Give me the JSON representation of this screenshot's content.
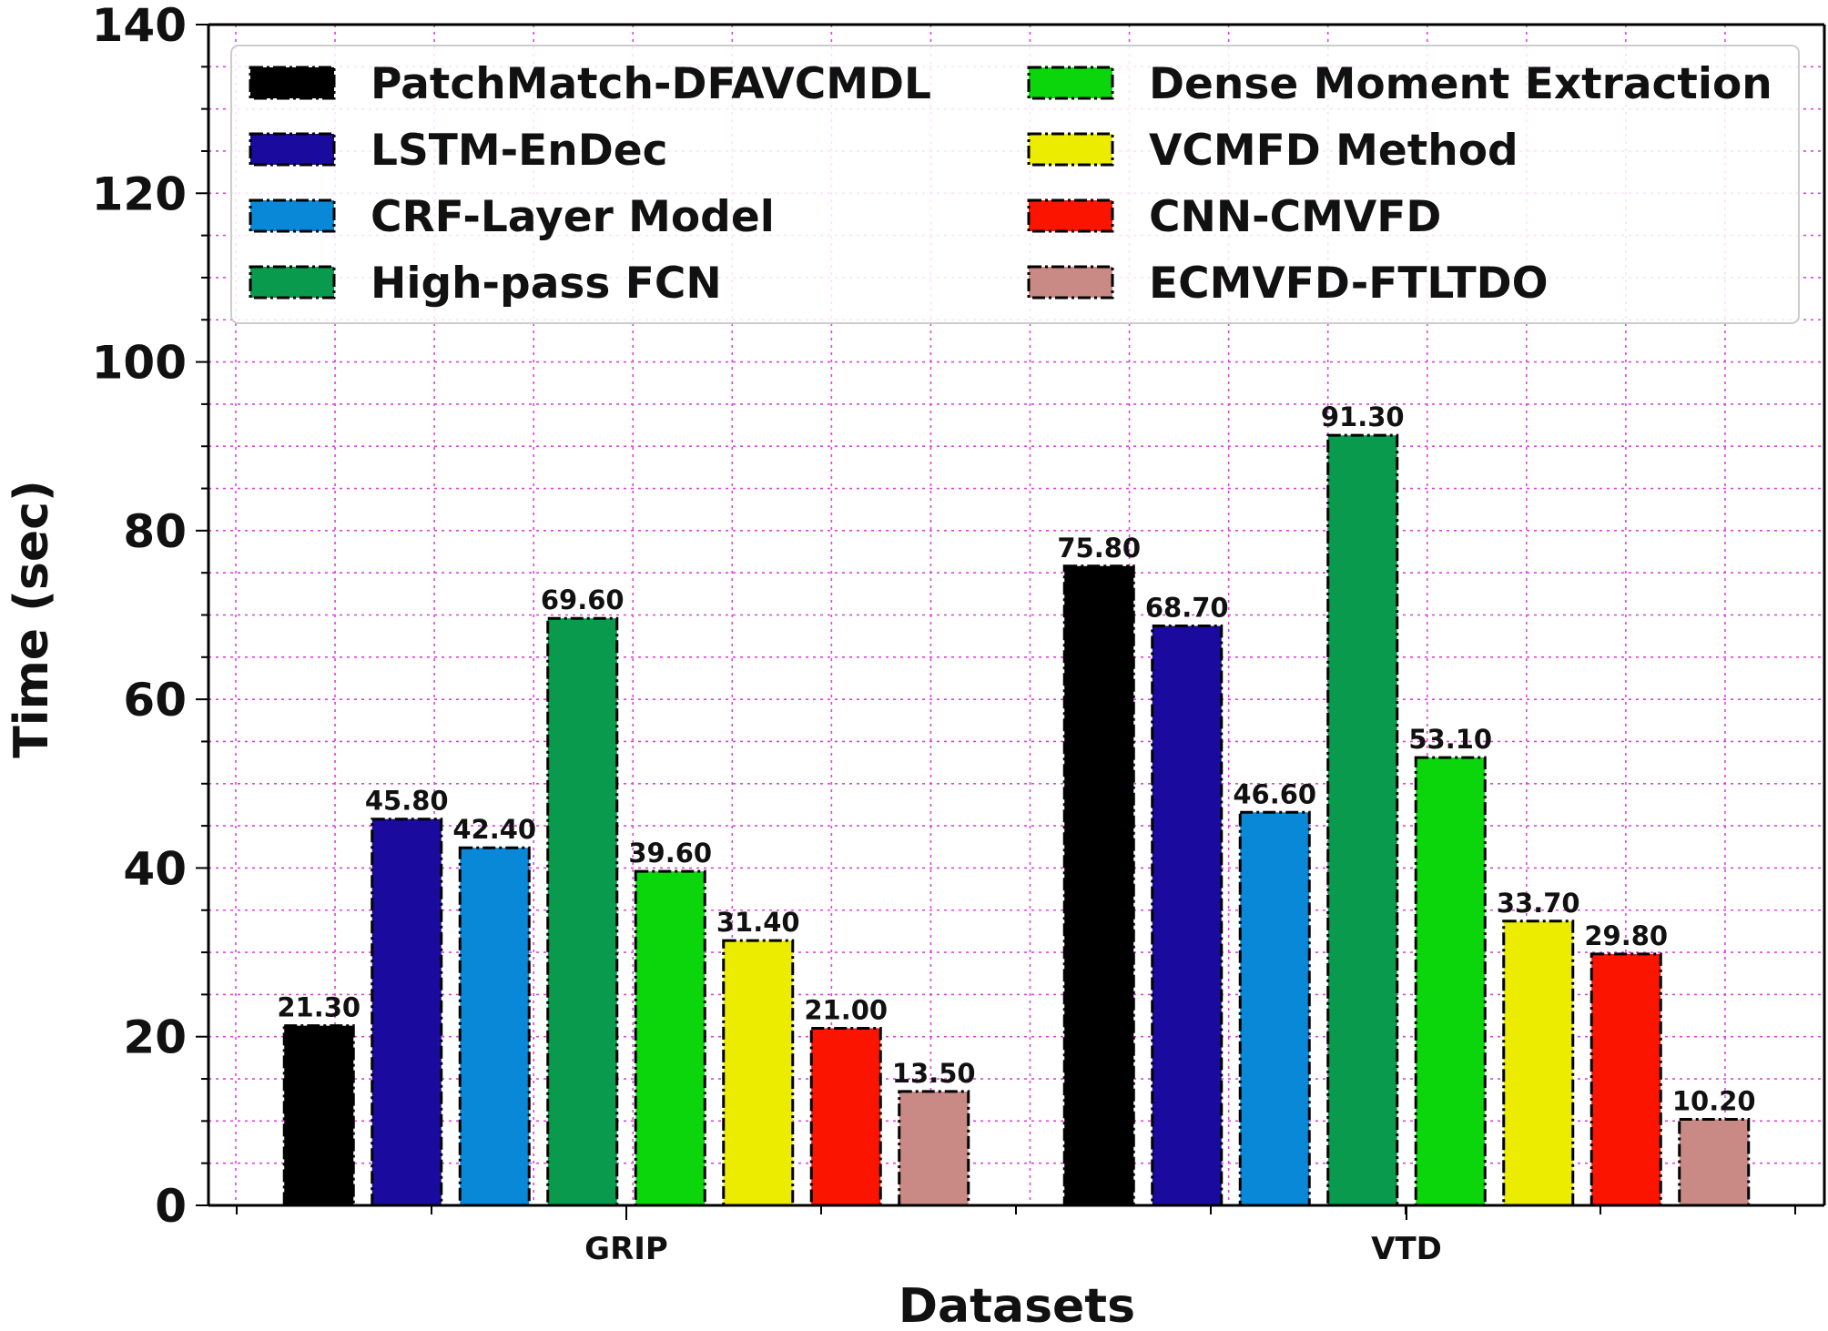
{
  "chart_data": {
    "type": "bar",
    "title": "",
    "xlabel": "Datasets",
    "ylabel": "Time (sec)",
    "ylim": [
      0,
      140
    ],
    "yticks": [
      0,
      20,
      40,
      60,
      80,
      100,
      120,
      140
    ],
    "grid": true,
    "legend_position": "top",
    "categories": [
      "GRIP",
      "VTD"
    ],
    "series": [
      {
        "name": "PatchMatch-DFAVCMDL",
        "color": "#000000",
        "values": [
          21.3,
          75.8
        ],
        "labels": [
          "21.30",
          "75.80"
        ]
      },
      {
        "name": "LSTM-EnDec",
        "color": "#1a0a9e",
        "values": [
          45.8,
          68.7
        ],
        "labels": [
          "45.80",
          "68.70"
        ]
      },
      {
        "name": "CRF-Layer Model",
        "color": "#0a88d8",
        "values": [
          42.4,
          46.6
        ],
        "labels": [
          "42.40",
          "46.60"
        ]
      },
      {
        "name": "High-pass FCN",
        "color": "#0a9a4e",
        "values": [
          69.6,
          91.3
        ],
        "labels": [
          "69.60",
          "91.30"
        ]
      },
      {
        "name": "Dense Moment Extraction",
        "color": "#0bd60b",
        "values": [
          39.6,
          53.1
        ],
        "labels": [
          "39.60",
          "53.10"
        ]
      },
      {
        "name": "VCMFD Method",
        "color": "#ecec00",
        "values": [
          31.4,
          33.7
        ],
        "labels": [
          "31.40",
          "33.70"
        ]
      },
      {
        "name": "CNN-CMVFD",
        "color": "#fb1400",
        "values": [
          21.0,
          29.8
        ],
        "labels": [
          "21.00",
          "29.80"
        ]
      },
      {
        "name": "ECMVFD-FTLTDO",
        "color": "#c98a86",
        "values": [
          13.5,
          10.2
        ],
        "labels": [
          "13.50",
          "10.20"
        ]
      }
    ]
  },
  "colors": {
    "grid": "#e040e0",
    "axis": "#000000"
  }
}
